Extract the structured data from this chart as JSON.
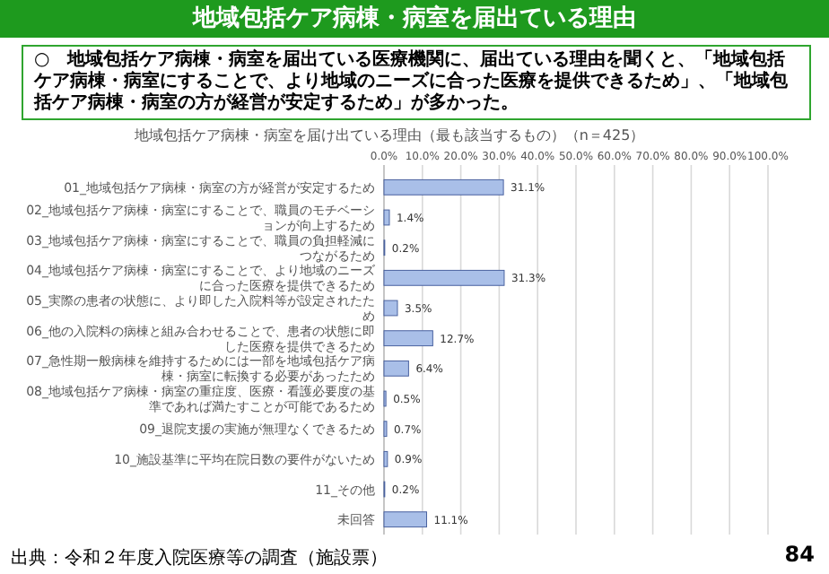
{
  "chart_data": {
    "type": "bar",
    "orientation": "horizontal",
    "title": "地域包括ケア病棟・病室を届出ている理由",
    "subtitle": "○　地域包括ケア病棟・病室を届出ている医療機関に、届出ている理由を聞くと、「地域包括ケア病棟・病室にすることで、より地域のニーズに合った医療を提供できるため」、「地域包括ケア病棟・病室の方が経営が安定するため」が多かった。",
    "xlabel": "地域包括ケア病棟・病室を届け出ている理由（最も該当するもの）（n＝425）",
    "categories": [
      "01_地域包括ケア病棟・病室の方が経営が安定するため",
      "02_地域包括ケア病棟・病室にすることで、職員のモチベーションが向上するため",
      "03_地域包括ケア病棟・病室にすることで、職員の負担軽減につながるため",
      "04_地域包括ケア病棟・病室にすることで、より地域のニーズに合った医療を提供できるため",
      "05_実際の患者の状態に、より即した入院料等が設定されたため",
      "06_他の入院料の病棟と組み合わせることで、患者の状態に即した医療を提供できるため",
      "07_急性期一般病棟を維持するためには一部を地域包括ケア病棟・病室に転換する必要があったため",
      "08_地域包括ケア病棟・病室の重症度、医療・看護必要度の基準であれば満たすことが可能であるため",
      "09_退院支援の実施が無理なくできるため",
      "10_施設基準に平均在院日数の要件がないため",
      "11_その他",
      "未回答"
    ],
    "values": [
      31.1,
      1.4,
      0.2,
      31.3,
      3.5,
      12.7,
      6.4,
      0.5,
      0.7,
      0.9,
      0.2,
      11.1
    ],
    "value_labels": [
      "31.1%",
      "1.4%",
      "0.2%",
      "31.3%",
      "3.5%",
      "12.7%",
      "6.4%",
      "0.5%",
      "0.7%",
      "0.9%",
      "0.2%",
      "11.1%"
    ],
    "color": "#a9bfe8",
    "xlim": [
      0,
      100
    ],
    "xticks": [
      {
        "value": 0,
        "label": "0.0%"
      },
      {
        "value": 10,
        "label": "10.0%"
      },
      {
        "value": 20,
        "label": "20.0%"
      },
      {
        "value": 30,
        "label": "30.0%"
      },
      {
        "value": 40,
        "label": "40.0%"
      },
      {
        "value": 50,
        "label": "50.0%"
      },
      {
        "value": 60,
        "label": "60.0%"
      },
      {
        "value": 70,
        "label": "70.0%"
      },
      {
        "value": 80,
        "label": "80.0%"
      },
      {
        "value": 90,
        "label": "90.0%"
      },
      {
        "value": 100,
        "label": "100.0%"
      }
    ],
    "grid": "x",
    "annotations": [
      "出典：令和２年度入院医療等の調査（施設票）",
      "84"
    ]
  }
}
